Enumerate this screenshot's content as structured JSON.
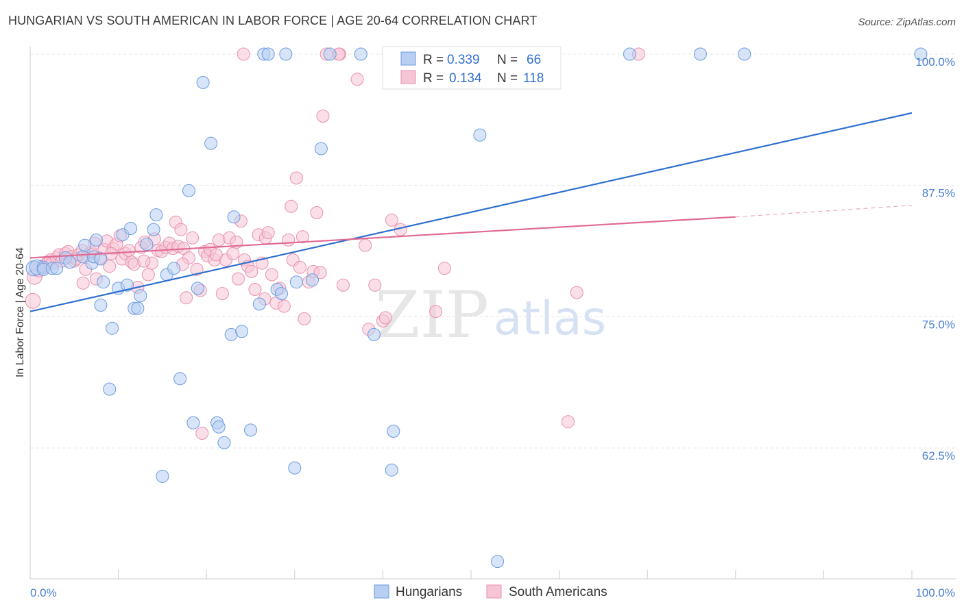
{
  "title": "HUNGARIAN VS SOUTH AMERICAN IN LABOR FORCE | AGE 20-64 CORRELATION CHART",
  "source": "Source: ZipAtlas.com",
  "watermark": {
    "zip": "ZIP",
    "atlas": "atlas"
  },
  "legend": {
    "rows": [
      {
        "r_label": "R = ",
        "r_value": "0.339",
        "n_label": "N = ",
        "n_value": "66",
        "color": "#6a9ae0",
        "fill": "#b8cff2"
      },
      {
        "r_label": "R = ",
        "r_value": "0.134",
        "n_label": "N = ",
        "n_value": "118",
        "color": "#e890ad",
        "fill": "#f6c5d5"
      }
    ],
    "value_color": "#2f6fcf"
  },
  "bottom_legend": [
    {
      "label": "Hungarians",
      "color": "#6a9ae0",
      "fill": "#b8cff2"
    },
    {
      "label": "South Americans",
      "color": "#e890ad",
      "fill": "#f6c5d5"
    }
  ],
  "chart_data": {
    "type": "scatter",
    "title": "HUNGARIAN VS SOUTH AMERICAN IN LABOR FORCE | AGE 20-64 CORRELATION CHART",
    "xlabel": "",
    "ylabel": "In Labor Force | Age 20-64",
    "xlim": [
      0,
      100
    ],
    "ylim": [
      51.5,
      101.5
    ],
    "x_tick_labels": [
      "0.0%",
      "100.0%"
    ],
    "y_ticks": [
      62.5,
      75.0,
      87.5,
      100.0
    ],
    "y_tick_labels": [
      "62.5%",
      "75.0%",
      "87.5%",
      "100.0%"
    ],
    "grid": true,
    "legend_position": "top-center",
    "series": [
      {
        "name": "Hungarians",
        "color": "#6a9ae0",
        "fill": "#b8cff2",
        "trend_line": {
          "x": [
            0,
            100
          ],
          "y": [
            75.5,
            94.4
          ],
          "color": "#2f6fcf"
        },
        "points": [
          [
            0.4,
            79.6
          ],
          [
            0.8,
            79.7
          ],
          [
            1.5,
            79.7
          ],
          [
            1.5,
            79.5
          ],
          [
            2.5,
            79.6
          ],
          [
            3,
            79.6
          ],
          [
            4,
            80.6
          ],
          [
            4.5,
            80.2
          ],
          [
            6,
            80.7
          ],
          [
            6.2,
            81.8
          ],
          [
            7,
            80.1
          ],
          [
            7.2,
            80.7
          ],
          [
            8,
            80.5
          ],
          [
            7.5,
            82.3
          ],
          [
            8,
            76.1
          ],
          [
            8.3,
            78.3
          ],
          [
            9,
            68.1
          ],
          [
            9.3,
            73.9
          ],
          [
            10,
            77.7
          ],
          [
            10.5,
            82.8
          ],
          [
            11,
            78.0
          ],
          [
            11.4,
            83.4
          ],
          [
            11.8,
            75.8
          ],
          [
            12.2,
            75.8
          ],
          [
            12.5,
            77.0
          ],
          [
            13.2,
            81.9
          ],
          [
            14,
            83.3
          ],
          [
            14.3,
            84.7
          ],
          [
            15,
            59.8
          ],
          [
            15.5,
            79.0
          ],
          [
            16.3,
            79.6
          ],
          [
            17,
            69.1
          ],
          [
            18,
            87.0
          ],
          [
            18.5,
            64.9
          ],
          [
            19,
            77.7
          ],
          [
            19.6,
            97.3
          ],
          [
            20.5,
            91.5
          ],
          [
            21.2,
            64.9
          ],
          [
            21.4,
            64.5
          ],
          [
            22,
            63.0
          ],
          [
            22.8,
            73.3
          ],
          [
            23.1,
            84.5
          ],
          [
            24,
            73.6
          ],
          [
            25,
            64.2
          ],
          [
            26,
            76.2
          ],
          [
            26.5,
            100.0
          ],
          [
            28,
            77.6
          ],
          [
            28.5,
            77.2
          ],
          [
            30,
            60.6
          ],
          [
            30.2,
            78.3
          ],
          [
            32,
            78.5
          ],
          [
            33,
            91.0
          ],
          [
            34,
            100.0
          ],
          [
            37.5,
            100.0
          ],
          [
            39,
            73.3
          ],
          [
            41,
            60.4
          ],
          [
            41.2,
            64.1
          ],
          [
            51,
            92.3
          ],
          [
            53,
            51.7
          ],
          [
            56,
            100.0
          ],
          [
            68,
            100.0
          ],
          [
            76,
            100.0
          ],
          [
            81,
            100.0
          ],
          [
            101,
            100.0
          ],
          [
            27,
            100.0
          ],
          [
            29,
            100.0
          ]
        ]
      },
      {
        "name": "South Americans",
        "color": "#e890ad",
        "fill": "#f6c5d5",
        "trend_line": {
          "x": [
            0,
            80
          ],
          "y": [
            80.6,
            84.5
          ],
          "color": "#e06a93"
        },
        "trend_line_dashed": {
          "x": [
            80,
            100
          ],
          "y": [
            84.5,
            85.6
          ]
        },
        "points": [
          [
            0.3,
            76.5
          ],
          [
            0.5,
            78.8
          ],
          [
            1,
            79.5
          ],
          [
            1.3,
            79.8
          ],
          [
            1.8,
            80.0
          ],
          [
            2,
            80.2
          ],
          [
            2.3,
            80.4
          ],
          [
            2.5,
            80.1
          ],
          [
            3,
            80.6
          ],
          [
            3.3,
            80.9
          ],
          [
            3.6,
            80.3
          ],
          [
            4,
            81.0
          ],
          [
            4.3,
            81.2
          ],
          [
            4.6,
            80.7
          ],
          [
            5,
            80.3
          ],
          [
            5.2,
            80.5
          ],
          [
            5.5,
            80.9
          ],
          [
            5.9,
            81.3
          ],
          [
            6,
            78.2
          ],
          [
            6.3,
            79.5
          ],
          [
            6.5,
            80.8
          ],
          [
            6.9,
            81.1
          ],
          [
            7.3,
            82.0
          ],
          [
            7.5,
            78.6
          ],
          [
            7.9,
            80.6
          ],
          [
            8.4,
            81.4
          ],
          [
            8.7,
            82.2
          ],
          [
            9,
            79.8
          ],
          [
            9.4,
            81.5
          ],
          [
            9.8,
            81.9
          ],
          [
            10.2,
            82.7
          ],
          [
            10.4,
            80.5
          ],
          [
            10.8,
            81.0
          ],
          [
            11.2,
            81.3
          ],
          [
            11.5,
            80.2
          ],
          [
            11.8,
            80.0
          ],
          [
            12.2,
            77.8
          ],
          [
            12.6,
            81.6
          ],
          [
            13,
            82.1
          ],
          [
            13.4,
            79.0
          ],
          [
            13.8,
            80.1
          ],
          [
            14.1,
            82.4
          ],
          [
            14.5,
            81.3
          ],
          [
            14.9,
            81.2
          ],
          [
            15.4,
            81.6
          ],
          [
            15.8,
            82.0
          ],
          [
            16.2,
            81.5
          ],
          [
            16.5,
            84.0
          ],
          [
            16.8,
            81.7
          ],
          [
            17.1,
            83.3
          ],
          [
            17.4,
            81.5
          ],
          [
            17.7,
            76.8
          ],
          [
            18,
            80.6
          ],
          [
            18.4,
            82.5
          ],
          [
            18.9,
            79.5
          ],
          [
            19.3,
            77.5
          ],
          [
            19.5,
            63.9
          ],
          [
            19.8,
            81.2
          ],
          [
            20.1,
            80.8
          ],
          [
            20.4,
            81.4
          ],
          [
            20.9,
            80.4
          ],
          [
            21.4,
            82.3
          ],
          [
            21.8,
            77.2
          ],
          [
            22.2,
            80.4
          ],
          [
            22.6,
            82.5
          ],
          [
            23,
            81.0
          ],
          [
            23.4,
            82.1
          ],
          [
            23.9,
            84.1
          ],
          [
            24.3,
            80.4
          ],
          [
            24.7,
            79.8
          ],
          [
            25.1,
            79.3
          ],
          [
            25.5,
            77.6
          ],
          [
            25.9,
            82.8
          ],
          [
            26.3,
            80.1
          ],
          [
            26.7,
            82.5
          ],
          [
            27,
            83.0
          ],
          [
            27.4,
            79.0
          ],
          [
            27.9,
            76.3
          ],
          [
            28.3,
            77.7
          ],
          [
            28.8,
            76.0
          ],
          [
            29.3,
            82.3
          ],
          [
            29.6,
            85.5
          ],
          [
            29.8,
            80.4
          ],
          [
            30.2,
            88.2
          ],
          [
            30.6,
            79.7
          ],
          [
            31.1,
            74.8
          ],
          [
            31.6,
            78.3
          ],
          [
            32.1,
            79.3
          ],
          [
            32.5,
            84.9
          ],
          [
            32.9,
            79.2
          ],
          [
            33.2,
            94.1
          ],
          [
            33.6,
            100.0
          ],
          [
            35.1,
            100.0
          ],
          [
            35.5,
            78.0
          ],
          [
            37.1,
            97.6
          ],
          [
            38,
            81.8
          ],
          [
            38.4,
            73.8
          ],
          [
            39.1,
            78.0
          ],
          [
            40,
            74.6
          ],
          [
            40.3,
            74.9
          ],
          [
            41,
            84.2
          ],
          [
            42,
            83.3
          ],
          [
            46,
            75.5
          ],
          [
            47,
            79.6
          ],
          [
            49,
            100.0
          ],
          [
            59,
            100.0
          ],
          [
            61,
            65.0
          ],
          [
            62,
            77.3
          ],
          [
            69,
            100.0
          ],
          [
            24.2,
            100.0
          ],
          [
            35,
            100.0
          ],
          [
            9.2,
            81.0
          ],
          [
            12.9,
            80.3
          ],
          [
            17.3,
            80.0
          ],
          [
            21.1,
            80.9
          ],
          [
            23.6,
            78.6
          ],
          [
            26.6,
            76.7
          ],
          [
            30.9,
            82.6
          ]
        ]
      }
    ]
  }
}
